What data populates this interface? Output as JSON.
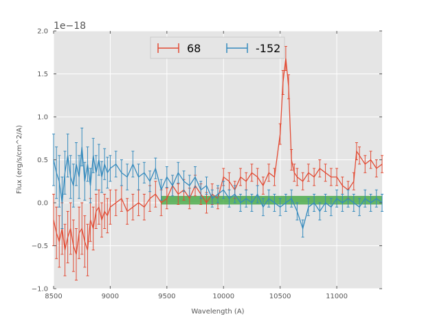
{
  "chart_data": {
    "type": "line",
    "title": "",
    "xlabel": "Wavelength (A)",
    "ylabel": "Flux (erg/s/cm^2/A)",
    "y_offset_label": "1e−18",
    "xlim": [
      8500,
      11400
    ],
    "ylim": [
      -1.0,
      2.0
    ],
    "x_ticks": [
      8500,
      9000,
      9500,
      10000,
      10500,
      11000
    ],
    "x_tick_labels": [
      "8500",
      "9000",
      "9500",
      "10000",
      "10500",
      "11000"
    ],
    "y_ticks": [
      -1.0,
      -0.5,
      0.0,
      0.5,
      1.0,
      1.5,
      2.0
    ],
    "y_tick_labels": [
      "−1.0",
      "−0.5",
      "0.0",
      "0.5",
      "1.0",
      "1.5",
      "2.0"
    ],
    "grid": true,
    "legend": {
      "placement": "top-center",
      "entries": [
        "68",
        "-152"
      ]
    },
    "band": {
      "x_start": 9450,
      "x_end": 11400,
      "y_low": -0.02,
      "y_high": 0.08,
      "color": "#2ca02c"
    },
    "series": [
      {
        "name": "68",
        "color": "#e24a33",
        "x": [
          8500,
          8525,
          8550,
          8575,
          8600,
          8625,
          8650,
          8675,
          8700,
          8725,
          8750,
          8775,
          8800,
          8825,
          8850,
          8875,
          8900,
          8925,
          8950,
          8975,
          9000,
          9050,
          9100,
          9150,
          9200,
          9250,
          9300,
          9350,
          9400,
          9450,
          9500,
          9550,
          9600,
          9650,
          9700,
          9750,
          9800,
          9850,
          9900,
          9950,
          10000,
          10050,
          10100,
          10150,
          10200,
          10250,
          10300,
          10350,
          10400,
          10450,
          10500,
          10525,
          10550,
          10575,
          10600,
          10625,
          10650,
          10700,
          10750,
          10800,
          10850,
          10900,
          10950,
          11000,
          11050,
          11100,
          11150,
          11175,
          11200,
          11250,
          11300,
          11350,
          11400
        ],
        "y": [
          -0.2,
          -0.35,
          -0.45,
          -0.3,
          -0.55,
          -0.4,
          -0.3,
          -0.5,
          -0.6,
          -0.35,
          -0.3,
          -0.45,
          -0.55,
          -0.2,
          -0.3,
          -0.1,
          -0.05,
          -0.2,
          -0.1,
          -0.15,
          -0.05,
          0.0,
          0.05,
          -0.1,
          -0.05,
          0.0,
          -0.05,
          0.05,
          0.1,
          0.0,
          0.05,
          0.2,
          0.1,
          0.15,
          0.05,
          0.2,
          0.1,
          0.0,
          0.1,
          0.05,
          0.3,
          0.25,
          0.15,
          0.3,
          0.25,
          0.35,
          0.3,
          0.2,
          0.35,
          0.3,
          0.8,
          1.4,
          1.68,
          1.35,
          0.5,
          0.35,
          0.3,
          0.25,
          0.35,
          0.3,
          0.4,
          0.35,
          0.3,
          0.3,
          0.2,
          0.15,
          0.25,
          0.6,
          0.55,
          0.45,
          0.5,
          0.4,
          0.45
        ],
        "err": [
          0.3,
          0.3,
          0.3,
          0.3,
          0.3,
          0.3,
          0.3,
          0.3,
          0.3,
          0.3,
          0.3,
          0.3,
          0.3,
          0.25,
          0.25,
          0.2,
          0.2,
          0.2,
          0.2,
          0.2,
          0.2,
          0.15,
          0.15,
          0.15,
          0.15,
          0.15,
          0.15,
          0.15,
          0.15,
          0.15,
          0.12,
          0.12,
          0.12,
          0.12,
          0.12,
          0.12,
          0.12,
          0.12,
          0.12,
          0.12,
          0.1,
          0.1,
          0.1,
          0.1,
          0.1,
          0.1,
          0.1,
          0.1,
          0.1,
          0.1,
          0.12,
          0.14,
          0.14,
          0.14,
          0.12,
          0.1,
          0.1,
          0.1,
          0.1,
          0.1,
          0.1,
          0.1,
          0.1,
          0.1,
          0.1,
          0.1,
          0.1,
          0.1,
          0.1,
          0.1,
          0.1,
          0.1,
          0.1
        ]
      },
      {
        "name": "-152",
        "color": "#348abd",
        "x": [
          8500,
          8525,
          8550,
          8575,
          8600,
          8625,
          8650,
          8675,
          8700,
          8725,
          8750,
          8775,
          8800,
          8825,
          8850,
          8875,
          8900,
          8925,
          8950,
          8975,
          9000,
          9050,
          9100,
          9150,
          9200,
          9250,
          9300,
          9350,
          9400,
          9450,
          9500,
          9550,
          9600,
          9650,
          9700,
          9750,
          9800,
          9850,
          9900,
          9950,
          10000,
          10050,
          10100,
          10150,
          10200,
          10250,
          10300,
          10350,
          10400,
          10450,
          10500,
          10550,
          10600,
          10650,
          10700,
          10750,
          10800,
          10850,
          10900,
          10950,
          11000,
          11050,
          11100,
          11150,
          11200,
          11250,
          11300,
          11350,
          11400
        ],
        "y": [
          0.5,
          0.35,
          0.25,
          0.0,
          0.35,
          0.55,
          0.3,
          0.2,
          0.45,
          0.3,
          0.65,
          0.25,
          0.45,
          0.2,
          0.55,
          0.35,
          0.5,
          0.3,
          0.45,
          0.35,
          0.4,
          0.45,
          0.35,
          0.3,
          0.45,
          0.3,
          0.35,
          0.25,
          0.4,
          0.15,
          0.3,
          0.2,
          0.35,
          0.25,
          0.2,
          0.3,
          0.15,
          0.2,
          0.05,
          0.1,
          0.15,
          0.05,
          0.1,
          0.0,
          0.05,
          0.0,
          0.1,
          -0.05,
          0.05,
          0.0,
          -0.05,
          0.0,
          0.05,
          -0.1,
          -0.3,
          -0.05,
          0.0,
          -0.1,
          0.0,
          -0.05,
          0.05,
          0.0,
          0.05,
          0.0,
          -0.05,
          0.05,
          0.0,
          0.05,
          0.0
        ],
        "err": [
          0.3,
          0.3,
          0.3,
          0.3,
          0.25,
          0.25,
          0.25,
          0.25,
          0.25,
          0.25,
          0.22,
          0.22,
          0.2,
          0.2,
          0.2,
          0.2,
          0.18,
          0.18,
          0.18,
          0.18,
          0.15,
          0.15,
          0.15,
          0.15,
          0.15,
          0.15,
          0.12,
          0.12,
          0.12,
          0.12,
          0.12,
          0.12,
          0.12,
          0.12,
          0.12,
          0.12,
          0.1,
          0.1,
          0.1,
          0.1,
          0.1,
          0.1,
          0.1,
          0.1,
          0.1,
          0.1,
          0.1,
          0.1,
          0.1,
          0.1,
          0.1,
          0.1,
          0.1,
          0.1,
          0.1,
          0.1,
          0.1,
          0.1,
          0.1,
          0.1,
          0.1,
          0.1,
          0.1,
          0.1,
          0.1,
          0.1,
          0.1,
          0.1,
          0.1
        ]
      }
    ]
  }
}
